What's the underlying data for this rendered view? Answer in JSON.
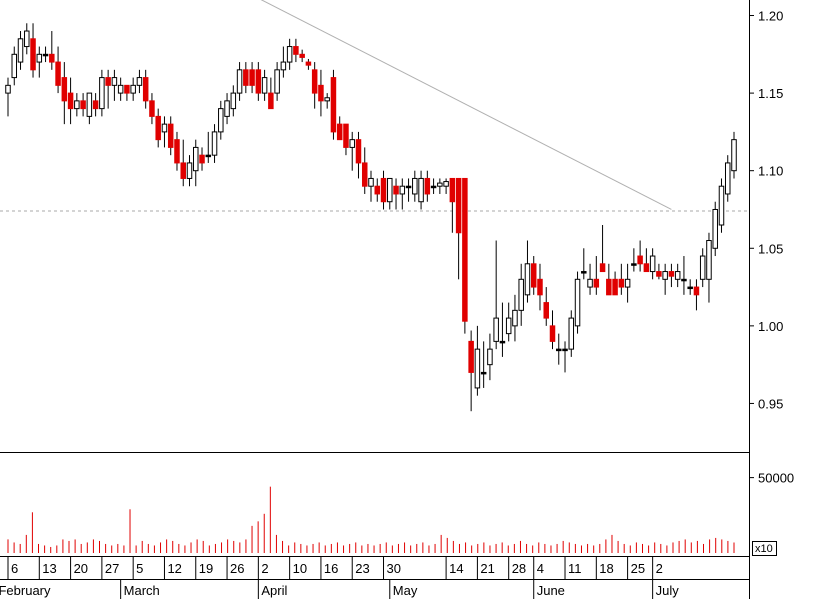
{
  "chart_data": {
    "type": "candlestick",
    "colors": {
      "up": "#ffffff",
      "down": "#e00000",
      "neutral": "#000000",
      "volume": "#e00000",
      "trendline": "#b0b0b0",
      "reference_line": "#aaaaaa"
    },
    "price_axis": {
      "ticks": [
        "1.20",
        "1.15",
        "1.10",
        "1.05",
        "1.00",
        "0.95"
      ],
      "ylim": [
        0.92,
        1.21
      ]
    },
    "volume_axis": {
      "ticks": [
        "50000"
      ],
      "multiplier_label": "x10",
      "ylim": [
        0,
        65000
      ]
    },
    "reference_line": 1.074,
    "x_day_labels": [
      "6",
      "13",
      "20",
      "27",
      "5",
      "12",
      "19",
      "26",
      "2",
      "10",
      "16",
      "23",
      "30",
      "14",
      "21",
      "28",
      "4",
      "11",
      "18",
      "25",
      "2"
    ],
    "x_day_label_index": [
      0,
      5,
      10,
      15,
      20,
      25,
      30,
      35,
      40,
      45,
      50,
      55,
      60,
      70,
      75,
      80,
      84,
      89,
      94,
      99,
      103
    ],
    "x_month_labels": [
      "February",
      "March",
      "April",
      "May",
      "June",
      "July"
    ],
    "x_month_label_index": [
      -2,
      18,
      40,
      61,
      84,
      103
    ],
    "trendline": [
      {
        "i": 26,
        "v": 1.24
      },
      {
        "i": 106,
        "v": 1.075
      }
    ],
    "candles": [
      {
        "o": 1.15,
        "h": 1.16,
        "l": 1.135,
        "c": 1.155
      },
      {
        "o": 1.16,
        "h": 1.18,
        "l": 1.155,
        "c": 1.175
      },
      {
        "o": 1.17,
        "h": 1.19,
        "l": 1.165,
        "c": 1.185
      },
      {
        "o": 1.18,
        "h": 1.195,
        "l": 1.175,
        "c": 1.19
      },
      {
        "o": 1.185,
        "h": 1.195,
        "l": 1.16,
        "c": 1.165
      },
      {
        "o": 1.17,
        "h": 1.18,
        "l": 1.16,
        "c": 1.175
      },
      {
        "o": 1.175,
        "h": 1.18,
        "l": 1.17,
        "c": 1.175
      },
      {
        "o": 1.175,
        "h": 1.19,
        "l": 1.165,
        "c": 1.17
      },
      {
        "o": 1.17,
        "h": 1.18,
        "l": 1.15,
        "c": 1.155
      },
      {
        "o": 1.16,
        "h": 1.17,
        "l": 1.13,
        "c": 1.145
      },
      {
        "o": 1.15,
        "h": 1.16,
        "l": 1.13,
        "c": 1.14
      },
      {
        "o": 1.14,
        "h": 1.15,
        "l": 1.135,
        "c": 1.145
      },
      {
        "o": 1.145,
        "h": 1.15,
        "l": 1.135,
        "c": 1.14
      },
      {
        "o": 1.135,
        "h": 1.15,
        "l": 1.13,
        "c": 1.15
      },
      {
        "o": 1.145,
        "h": 1.15,
        "l": 1.135,
        "c": 1.14
      },
      {
        "o": 1.14,
        "h": 1.165,
        "l": 1.135,
        "c": 1.16
      },
      {
        "o": 1.16,
        "h": 1.165,
        "l": 1.14,
        "c": 1.155
      },
      {
        "o": 1.155,
        "h": 1.165,
        "l": 1.145,
        "c": 1.16
      },
      {
        "o": 1.15,
        "h": 1.16,
        "l": 1.145,
        "c": 1.155
      },
      {
        "o": 1.155,
        "h": 1.155,
        "l": 1.145,
        "c": 1.15
      },
      {
        "o": 1.15,
        "h": 1.16,
        "l": 1.145,
        "c": 1.155
      },
      {
        "o": 1.155,
        "h": 1.165,
        "l": 1.15,
        "c": 1.16
      },
      {
        "o": 1.16,
        "h": 1.165,
        "l": 1.14,
        "c": 1.145
      },
      {
        "o": 1.145,
        "h": 1.15,
        "l": 1.13,
        "c": 1.135
      },
      {
        "o": 1.135,
        "h": 1.14,
        "l": 1.115,
        "c": 1.12
      },
      {
        "o": 1.125,
        "h": 1.135,
        "l": 1.115,
        "c": 1.13
      },
      {
        "o": 1.13,
        "h": 1.135,
        "l": 1.11,
        "c": 1.115
      },
      {
        "o": 1.12,
        "h": 1.125,
        "l": 1.1,
        "c": 1.105
      },
      {
        "o": 1.105,
        "h": 1.12,
        "l": 1.09,
        "c": 1.095
      },
      {
        "o": 1.095,
        "h": 1.11,
        "l": 1.09,
        "c": 1.105
      },
      {
        "o": 1.1,
        "h": 1.12,
        "l": 1.09,
        "c": 1.115
      },
      {
        "o": 1.11,
        "h": 1.115,
        "l": 1.1,
        "c": 1.105
      },
      {
        "o": 1.11,
        "h": 1.125,
        "l": 1.105,
        "c": 1.11
      },
      {
        "o": 1.11,
        "h": 1.13,
        "l": 1.105,
        "c": 1.125
      },
      {
        "o": 1.125,
        "h": 1.145,
        "l": 1.12,
        "c": 1.14
      },
      {
        "o": 1.135,
        "h": 1.15,
        "l": 1.13,
        "c": 1.145
      },
      {
        "o": 1.14,
        "h": 1.155,
        "l": 1.135,
        "c": 1.15
      },
      {
        "o": 1.15,
        "h": 1.17,
        "l": 1.145,
        "c": 1.165
      },
      {
        "o": 1.165,
        "h": 1.17,
        "l": 1.15,
        "c": 1.155
      },
      {
        "o": 1.165,
        "h": 1.17,
        "l": 1.15,
        "c": 1.155
      },
      {
        "o": 1.165,
        "h": 1.17,
        "l": 1.145,
        "c": 1.15
      },
      {
        "o": 1.15,
        "h": 1.165,
        "l": 1.145,
        "c": 1.16
      },
      {
        "o": 1.15,
        "h": 1.16,
        "l": 1.14,
        "c": 1.14
      },
      {
        "o": 1.15,
        "h": 1.17,
        "l": 1.145,
        "c": 1.165
      },
      {
        "o": 1.165,
        "h": 1.18,
        "l": 1.16,
        "c": 1.17
      },
      {
        "o": 1.17,
        "h": 1.185,
        "l": 1.165,
        "c": 1.18
      },
      {
        "o": 1.18,
        "h": 1.185,
        "l": 1.17,
        "c": 1.175
      },
      {
        "o": 1.175,
        "h": 1.178,
        "l": 1.17,
        "c": 1.173
      },
      {
        "o": 1.17,
        "h": 1.172,
        "l": 1.165,
        "c": 1.168
      },
      {
        "o": 1.165,
        "h": 1.17,
        "l": 1.14,
        "c": 1.15
      },
      {
        "o": 1.155,
        "h": 1.165,
        "l": 1.135,
        "c": 1.145
      },
      {
        "o": 1.145,
        "h": 1.15,
        "l": 1.14,
        "c": 1.147
      },
      {
        "o": 1.16,
        "h": 1.165,
        "l": 1.12,
        "c": 1.125
      },
      {
        "o": 1.13,
        "h": 1.135,
        "l": 1.12,
        "c": 1.12
      },
      {
        "o": 1.13,
        "h": 1.13,
        "l": 1.11,
        "c": 1.115
      },
      {
        "o": 1.115,
        "h": 1.125,
        "l": 1.1,
        "c": 1.12
      },
      {
        "o": 1.12,
        "h": 1.125,
        "l": 1.095,
        "c": 1.105
      },
      {
        "o": 1.105,
        "h": 1.115,
        "l": 1.085,
        "c": 1.09
      },
      {
        "o": 1.09,
        "h": 1.1,
        "l": 1.08,
        "c": 1.095
      },
      {
        "o": 1.09,
        "h": 1.095,
        "l": 1.08,
        "c": 1.085
      }
    ],
    "candles_2": [
      {
        "o": 1.095,
        "h": 1.1,
        "l": 1.075,
        "c": 1.08
      },
      {
        "o": 1.08,
        "h": 1.095,
        "l": 1.075,
        "c": 1.095
      },
      {
        "o": 1.09,
        "h": 1.095,
        "l": 1.075,
        "c": 1.085
      },
      {
        "o": 1.085,
        "h": 1.095,
        "l": 1.075,
        "c": 1.09
      },
      {
        "o": 1.09,
        "h": 1.095,
        "l": 1.08,
        "c": 1.09
      },
      {
        "o": 1.085,
        "h": 1.1,
        "l": 1.08,
        "c": 1.095
      },
      {
        "o": 1.08,
        "h": 1.1,
        "l": 1.075,
        "c": 1.095
      },
      {
        "o": 1.095,
        "h": 1.1,
        "l": 1.08,
        "c": 1.085
      },
      {
        "o": 1.09,
        "h": 1.095,
        "l": 1.085,
        "c": 1.09
      },
      {
        "o": 1.09,
        "h": 1.095,
        "l": 1.085,
        "c": 1.092
      },
      {
        "o": 1.09,
        "h": 1.095,
        "l": 1.085,
        "c": 1.093
      },
      {
        "o": 1.095,
        "h": 1.095,
        "l": 1.06,
        "c": 1.08
      },
      {
        "o": 1.095,
        "h": 1.095,
        "l": 1.03,
        "c": 1.06
      },
      {
        "o": 1.095,
        "h": 1.095,
        "l": 0.995,
        "c": 1.003
      },
      {
        "o": 0.99,
        "h": 0.997,
        "l": 0.945,
        "c": 0.97
      },
      {
        "o": 0.96,
        "h": 1.0,
        "l": 0.955,
        "c": 0.985
      },
      {
        "o": 0.97,
        "h": 0.99,
        "l": 0.96,
        "c": 0.97
      },
      {
        "o": 0.975,
        "h": 0.995,
        "l": 0.965,
        "c": 0.985
      },
      {
        "o": 0.99,
        "h": 1.055,
        "l": 0.985,
        "c": 1.005
      },
      {
        "o": 0.99,
        "h": 1.015,
        "l": 0.98,
        "c": 0.99
      },
      {
        "o": 0.995,
        "h": 1.015,
        "l": 0.99,
        "c": 1.005
      },
      {
        "o": 1.0,
        "h": 1.02,
        "l": 0.99,
        "c": 1.01
      },
      {
        "o": 1.01,
        "h": 1.04,
        "l": 1.0,
        "c": 1.03
      },
      {
        "o": 1.02,
        "h": 1.055,
        "l": 1.015,
        "c": 1.04
      },
      {
        "o": 1.04,
        "h": 1.045,
        "l": 1.02,
        "c": 1.025
      },
      {
        "o": 1.03,
        "h": 1.04,
        "l": 1.01,
        "c": 1.02
      },
      {
        "o": 1.015,
        "h": 1.025,
        "l": 1.0,
        "c": 1.005
      },
      {
        "o": 1.0,
        "h": 1.01,
        "l": 0.985,
        "c": 0.99
      },
      {
        "o": 0.985,
        "h": 0.995,
        "l": 0.975,
        "c": 0.985
      },
      {
        "o": 0.985,
        "h": 0.99,
        "l": 0.97,
        "c": 0.985
      },
      {
        "o": 0.985,
        "h": 1.01,
        "l": 0.98,
        "c": 1.005
      },
      {
        "o": 1.0,
        "h": 1.035,
        "l": 0.995,
        "c": 1.03
      },
      {
        "o": 1.035,
        "h": 1.05,
        "l": 1.03,
        "c": 1.035
      },
      {
        "o": 1.025,
        "h": 1.04,
        "l": 1.02,
        "c": 1.03
      },
      {
        "o": 1.03,
        "h": 1.045,
        "l": 1.02,
        "c": 1.025
      },
      {
        "o": 1.04,
        "h": 1.065,
        "l": 1.035,
        "c": 1.035
      },
      {
        "o": 1.03,
        "h": 1.04,
        "l": 1.025,
        "c": 1.02
      },
      {
        "o": 1.03,
        "h": 1.035,
        "l": 1.02,
        "c": 1.02
      },
      {
        "o": 1.03,
        "h": 1.04,
        "l": 1.02,
        "c": 1.025
      },
      {
        "o": 1.025,
        "h": 1.04,
        "l": 1.015,
        "c": 1.03
      },
      {
        "o": 1.04,
        "h": 1.05,
        "l": 1.035,
        "c": 1.04
      },
      {
        "o": 1.045,
        "h": 1.055,
        "l": 1.035,
        "c": 1.04
      },
      {
        "o": 1.04,
        "h": 1.05,
        "l": 1.035,
        "c": 1.035
      },
      {
        "o": 1.035,
        "h": 1.05,
        "l": 1.03,
        "c": 1.045
      },
      {
        "o": 1.035,
        "h": 1.04,
        "l": 1.03,
        "c": 1.032
      },
      {
        "o": 1.03,
        "h": 1.04,
        "l": 1.02,
        "c": 1.035
      },
      {
        "o": 1.035,
        "h": 1.04,
        "l": 1.025,
        "c": 1.032
      },
      {
        "o": 1.03,
        "h": 1.04,
        "l": 1.025,
        "c": 1.035
      },
      {
        "o": 1.03,
        "h": 1.045,
        "l": 1.02,
        "c": 1.03
      },
      {
        "o": 1.025,
        "h": 1.03,
        "l": 1.02,
        "c": 1.025
      },
      {
        "o": 1.025,
        "h": 1.03,
        "l": 1.01,
        "c": 1.02
      },
      {
        "o": 1.03,
        "h": 1.05,
        "l": 1.025,
        "c": 1.045
      },
      {
        "o": 1.03,
        "h": 1.06,
        "l": 1.015,
        "c": 1.055
      },
      {
        "o": 1.05,
        "h": 1.08,
        "l": 1.045,
        "c": 1.075
      },
      {
        "o": 1.065,
        "h": 1.095,
        "l": 1.06,
        "c": 1.09
      },
      {
        "o": 1.085,
        "h": 1.11,
        "l": 1.08,
        "c": 1.105
      },
      {
        "o": 1.1,
        "h": 1.125,
        "l": 1.095,
        "c": 1.12
      }
    ],
    "volume": [
      9000,
      7000,
      6000,
      12000,
      27000,
      6000,
      5000,
      4000,
      5000,
      9000,
      8000,
      9000,
      6000,
      7000,
      9000,
      8000,
      6000,
      5000,
      6000,
      5000,
      29000,
      5000,
      8000,
      6000,
      5000,
      7000,
      9000,
      8000,
      6000,
      5000,
      7000,
      9000,
      8000,
      5000,
      6000,
      7000,
      9000,
      8000,
      7000,
      9000,
      18000,
      21000,
      26000,
      44000,
      12000,
      8000,
      5000,
      7000,
      6000,
      5000,
      6000,
      7000,
      5000,
      6000,
      7000,
      5000,
      6000,
      7000,
      5000,
      6000,
      5000,
      6000,
      7000,
      5000,
      6000,
      7000,
      5000,
      6000,
      7000,
      5000,
      6000,
      12000,
      10000,
      8000,
      6000,
      7000,
      5000,
      6000,
      7000,
      5000,
      6000,
      7000,
      5000,
      6000,
      8000,
      6000,
      5000,
      7000,
      6000,
      5000,
      6000,
      8000,
      7000,
      6000,
      5000,
      6000,
      5000,
      6000,
      9000,
      12000,
      8000,
      6000,
      5000,
      7000,
      6000,
      5000,
      7000,
      6000,
      5000,
      7000,
      8000,
      9000,
      7000,
      8000,
      6000,
      9000,
      10000,
      9000,
      8000,
      7000
    ]
  }
}
